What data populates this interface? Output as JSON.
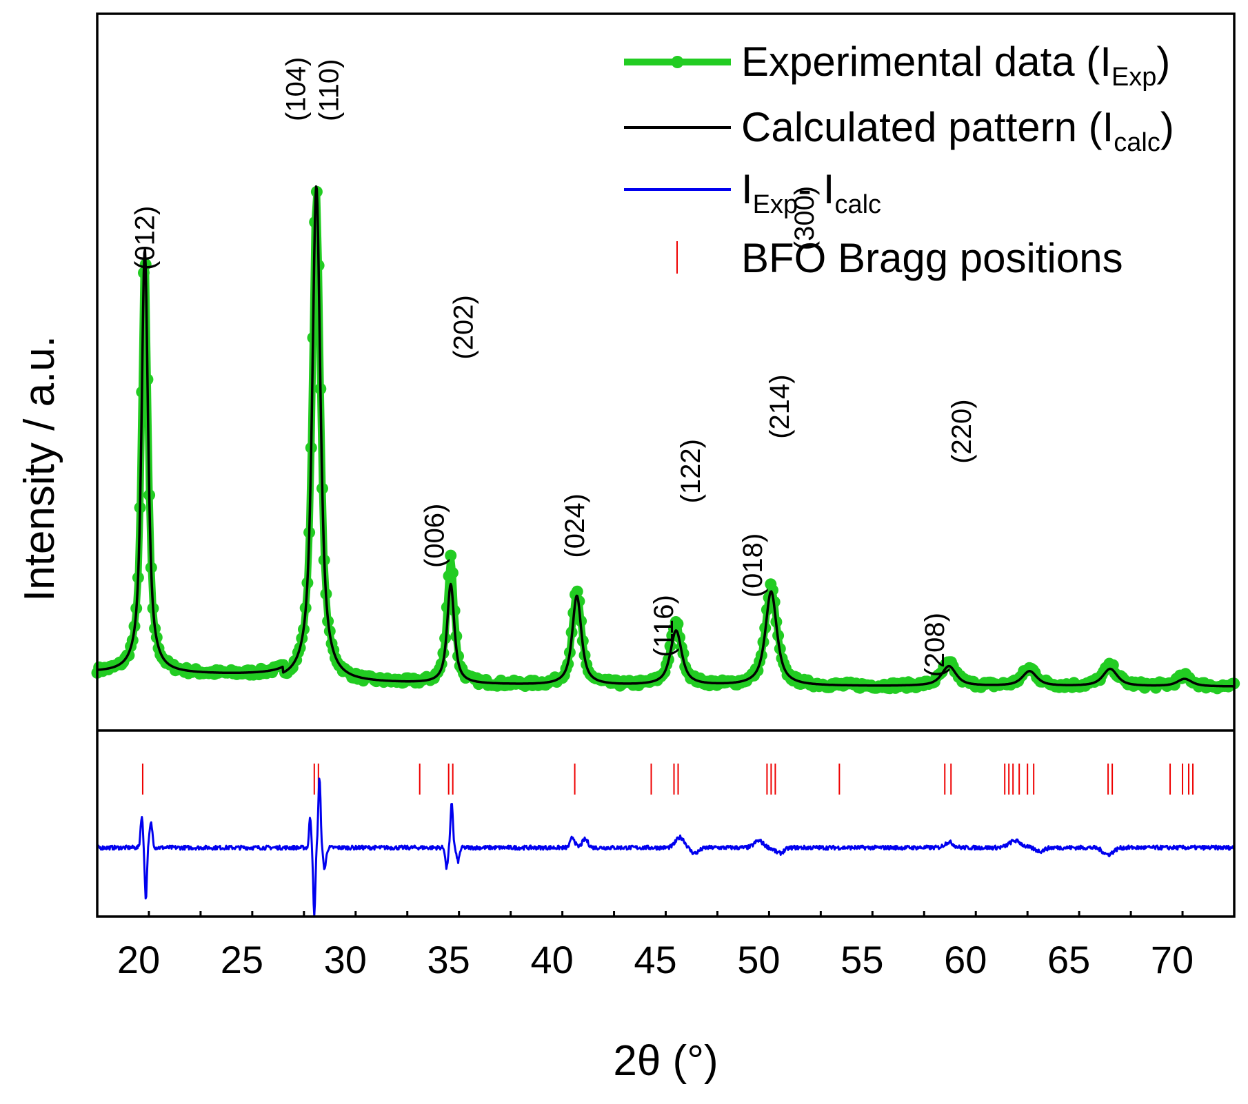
{
  "chart_data": {
    "type": "line",
    "title": "",
    "xlabel": "2θ (°)",
    "ylabel": "Intensity / a.u.",
    "xlim": [
      18,
      73
    ],
    "ylim_top_panel": [
      0,
      1
    ],
    "ylim_bottom_panel": [
      -1,
      1
    ],
    "xticks": [
      20,
      25,
      30,
      35,
      40,
      45,
      50,
      55,
      60,
      65,
      70
    ],
    "xtick_labels": [
      "20",
      "25",
      "30",
      "35",
      "40",
      "45",
      "50",
      "55",
      "60",
      "65",
      "70"
    ],
    "grid": false,
    "legend_position": "top-right",
    "colors": {
      "experimental": "#22cc22",
      "calculated": "#000000",
      "difference": "#0000ee",
      "bragg": "#ee0000"
    },
    "baseline": 0.06,
    "peaks": [
      {
        "x": 20.3,
        "calc": 0.855,
        "exp": 0.855,
        "w": 0.2
      },
      {
        "x": 28.6,
        "calc": 1.0,
        "exp": 1.0,
        "w": 0.25
      },
      {
        "x": 35.1,
        "calc": 0.2,
        "exp": 0.26,
        "w": 0.22
      },
      {
        "x": 41.2,
        "calc": 0.18,
        "exp": 0.19,
        "w": 0.28
      },
      {
        "x": 46.0,
        "calc": 0.11,
        "exp": 0.125,
        "w": 0.35
      },
      {
        "x": 50.6,
        "calc": 0.19,
        "exp": 0.2,
        "w": 0.35
      },
      {
        "x": 59.2,
        "calc": 0.04,
        "exp": 0.045,
        "w": 0.45
      },
      {
        "x": 63.1,
        "calc": 0.03,
        "exp": 0.035,
        "w": 0.45
      },
      {
        "x": 67.0,
        "calc": 0.035,
        "exp": 0.04,
        "w": 0.45
      },
      {
        "x": 70.6,
        "calc": 0.015,
        "exp": 0.02,
        "w": 0.45
      }
    ],
    "bragg_positions": [
      20.2,
      28.5,
      28.7,
      33.6,
      35.0,
      35.2,
      41.1,
      44.8,
      45.9,
      46.1,
      50.4,
      50.6,
      50.8,
      53.9,
      59.0,
      59.3,
      61.9,
      62.1,
      62.3,
      62.6,
      63.0,
      63.3,
      66.9,
      67.1,
      69.9,
      70.5,
      70.8,
      71.0
    ],
    "difference_features": [
      {
        "x": 20.15,
        "a": 0.45,
        "w": 0.08
      },
      {
        "x": 20.35,
        "a": -0.75,
        "w": 0.07
      },
      {
        "x": 20.6,
        "a": 0.35,
        "w": 0.1
      },
      {
        "x": 28.3,
        "a": 0.45,
        "w": 0.07
      },
      {
        "x": 28.5,
        "a": -1.0,
        "w": 0.07
      },
      {
        "x": 28.75,
        "a": 1.0,
        "w": 0.08
      },
      {
        "x": 29.0,
        "a": -0.3,
        "w": 0.1
      },
      {
        "x": 34.9,
        "a": -0.3,
        "w": 0.08
      },
      {
        "x": 35.15,
        "a": 0.65,
        "w": 0.08
      },
      {
        "x": 35.45,
        "a": -0.2,
        "w": 0.1
      },
      {
        "x": 41.0,
        "a": 0.15,
        "w": 0.15
      },
      {
        "x": 41.6,
        "a": 0.12,
        "w": 0.2
      },
      {
        "x": 46.2,
        "a": 0.15,
        "w": 0.3
      },
      {
        "x": 46.9,
        "a": -0.08,
        "w": 0.3
      },
      {
        "x": 50.0,
        "a": 0.1,
        "w": 0.3
      },
      {
        "x": 51.0,
        "a": -0.08,
        "w": 0.3
      },
      {
        "x": 59.2,
        "a": 0.08,
        "w": 0.3
      },
      {
        "x": 62.4,
        "a": 0.1,
        "w": 0.4
      },
      {
        "x": 63.6,
        "a": -0.05,
        "w": 0.3
      },
      {
        "x": 66.9,
        "a": -0.1,
        "w": 0.35
      }
    ],
    "peak_labels": [
      {
        "text": "(012)",
        "x": 20.4,
        "y": 0.9
      },
      {
        "text": "(104)",
        "x": 27.7,
        "y": 1.2
      },
      {
        "text": "(110)",
        "x": 29.3,
        "y": 1.2
      },
      {
        "text": "(006)",
        "x": 34.4,
        "y": 0.3
      },
      {
        "text": "(202)",
        "x": 35.8,
        "y": 0.72
      },
      {
        "text": "(024)",
        "x": 41.2,
        "y": 0.32
      },
      {
        "text": "(116)",
        "x": 45.5,
        "y": 0.12
      },
      {
        "text": "(122)",
        "x": 46.8,
        "y": 0.43
      },
      {
        "text": "(018)",
        "x": 49.8,
        "y": 0.24
      },
      {
        "text": "(214)",
        "x": 51.1,
        "y": 0.56
      },
      {
        "text": "(300)",
        "x": 52.3,
        "y": 0.94
      },
      {
        "text": "(208)",
        "x": 58.6,
        "y": 0.08
      },
      {
        "text": "(220)",
        "x": 59.9,
        "y": 0.51
      }
    ],
    "legend": [
      {
        "label_main": "Experimental data (I",
        "label_sub": "Exp",
        "label_end": ")",
        "style": "line-marker",
        "series": "experimental"
      },
      {
        "label_main": "Calculated pattern (I",
        "label_sub": "calc",
        "label_end": ")",
        "style": "line",
        "series": "calculated"
      },
      {
        "label_main": "I",
        "label_sub": "Exp",
        "label_mid": "- I",
        "label_sub2": "calc",
        "style": "line",
        "series": "difference"
      },
      {
        "label_main": "BFO Bragg positions",
        "style": "tick",
        "series": "bragg"
      }
    ]
  }
}
